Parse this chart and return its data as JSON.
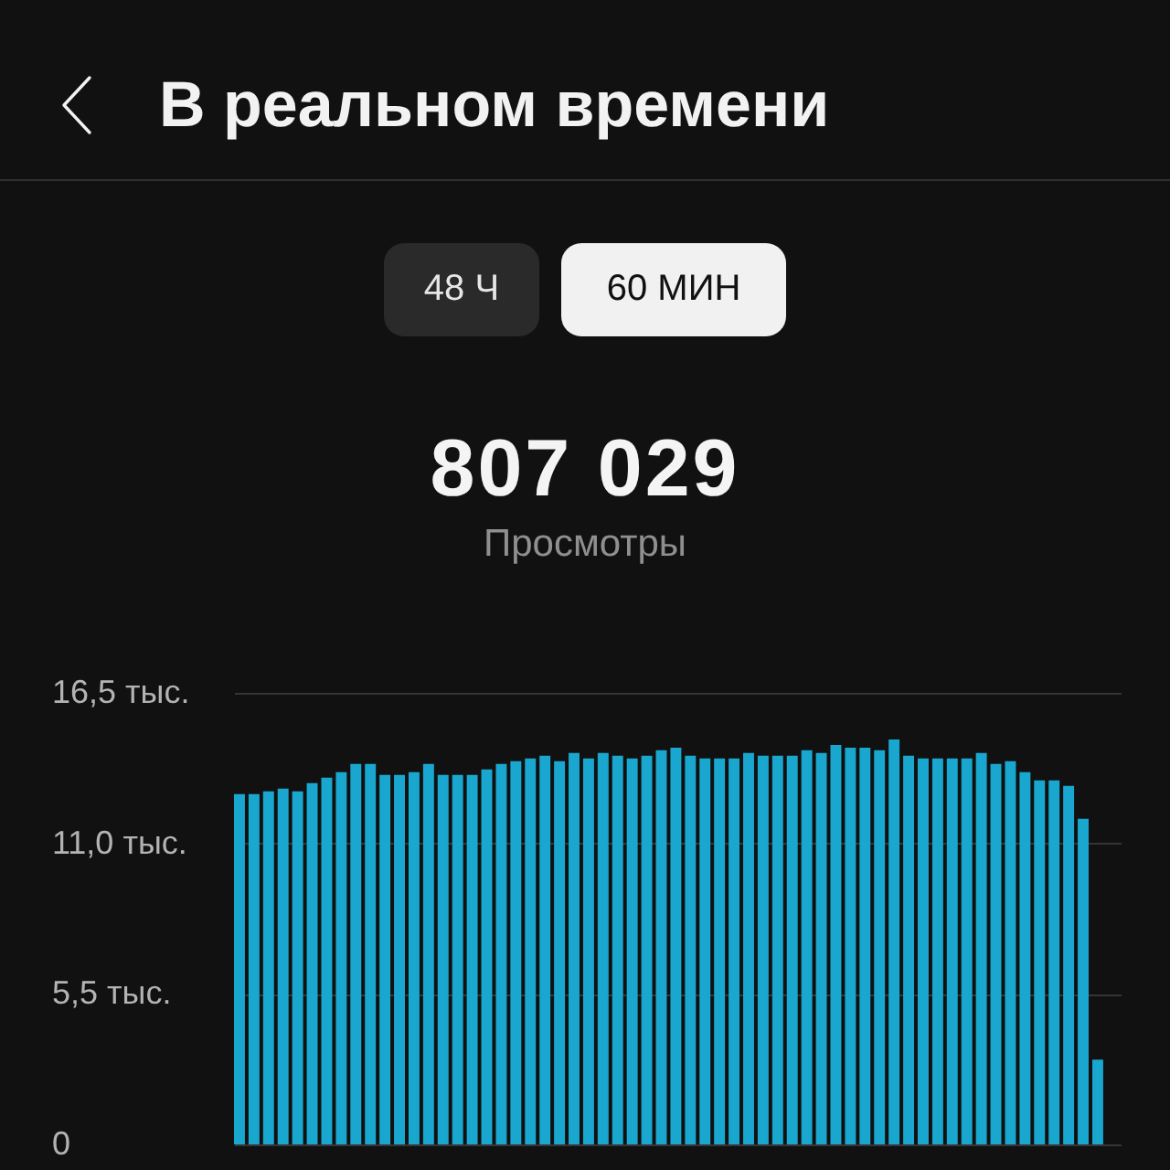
{
  "chart_data": {
    "type": "bar",
    "title": "В реальном времени",
    "annotations": [
      "48 Ч",
      "60 МИН",
      "807 029",
      "Просмотры"
    ],
    "categories": [
      null,
      null,
      null,
      null,
      null,
      null,
      null,
      null,
      null,
      null,
      null,
      null,
      null,
      null,
      null,
      null,
      null,
      null,
      null,
      null,
      null,
      null,
      null,
      null,
      null,
      null,
      null,
      null,
      null,
      null,
      null,
      null,
      null,
      null,
      null,
      null,
      null,
      null,
      null,
      null,
      null,
      null,
      null,
      null,
      null,
      null,
      null,
      null,
      null,
      null,
      null,
      null,
      null,
      null,
      null,
      null,
      null,
      null,
      null,
      null
    ],
    "values": [
      12.8,
      12.8,
      12.9,
      13.0,
      12.9,
      13.2,
      13.4,
      13.6,
      13.9,
      13.9,
      13.5,
      13.5,
      13.6,
      13.9,
      13.5,
      13.5,
      13.5,
      13.7,
      13.9,
      14.0,
      14.1,
      14.2,
      14.0,
      14.3,
      14.1,
      14.3,
      14.2,
      14.1,
      14.2,
      14.4,
      14.5,
      14.2,
      14.1,
      14.1,
      14.1,
      14.3,
      14.2,
      14.2,
      14.2,
      14.4,
      14.3,
      14.6,
      14.5,
      14.5,
      14.4,
      14.8,
      14.2,
      14.1,
      14.1,
      14.1,
      14.1,
      14.3,
      13.9,
      14.0,
      13.6,
      13.3,
      13.3,
      13.1,
      11.9,
      3.1
    ],
    "color": "#19a7d0",
    "ylim": [
      0,
      16.5
    ],
    "yticks": [
      0,
      {
        "value": 5.5,
        "label": "5,5 тыс."
      },
      {
        "value": 11,
        "label": "11,0 тыс."
      },
      {
        "value": 16.5,
        "label": "16,5 тыс."
      }
    ],
    "grid": "y",
    "tick_labels": "y"
  }
}
